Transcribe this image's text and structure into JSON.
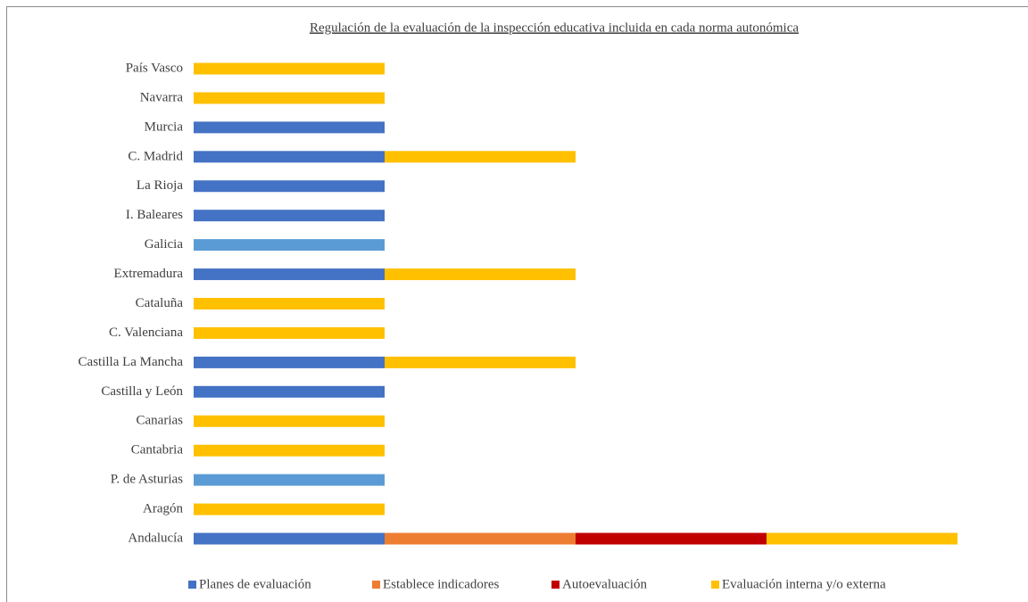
{
  "chart_data": {
    "type": "stacked_barh",
    "title": "Regulación de la evaluación de la inspección educativa incluida en cada norma autonómica",
    "categories": [
      "Andalucía",
      "Aragón",
      "P. de Asturias",
      "Cantabria",
      "Canarias",
      "Castilla y León",
      "Castilla La Mancha",
      "C. Valenciana",
      "Cataluña",
      "Extremadura",
      "Galicia",
      "I. Baleares",
      "La Rioja",
      "C. Madrid",
      "Murcia",
      "Navarra",
      "País Vasco"
    ],
    "series": [
      {
        "name": "Planes de evaluación",
        "color": "#4472c4",
        "values": [
          1,
          0,
          1,
          0,
          0,
          1,
          1,
          0,
          0,
          1,
          1,
          1,
          1,
          1,
          1,
          0,
          0
        ],
        "point_colors": [
          "#4472c4",
          "#4472c4",
          "#5b9bd5",
          "#4472c4",
          "#4472c4",
          "#4472c4",
          "#4472c4",
          "#4472c4",
          "#4472c4",
          "#4472c4",
          "#5b9bd5",
          "#4472c4",
          "#4472c4",
          "#4472c4",
          "#4472c4",
          "#4472c4",
          "#4472c4"
        ]
      },
      {
        "name": "Establece indicadores",
        "color": "#ed7d31",
        "values": [
          1,
          0,
          0,
          0,
          0,
          0,
          0,
          0,
          0,
          0,
          0,
          0,
          0,
          0,
          0,
          0,
          0
        ]
      },
      {
        "name": "Autoevaluación",
        "color": "#c00000",
        "values": [
          1,
          0,
          0,
          0,
          0,
          0,
          0,
          0,
          0,
          0,
          0,
          0,
          0,
          0,
          0,
          0,
          0
        ]
      },
      {
        "name": "Evaluación interna y/o externa",
        "color": "#ffc000",
        "values": [
          1,
          1,
          0,
          1,
          1,
          0,
          1,
          1,
          1,
          1,
          0,
          0,
          0,
          1,
          0,
          1,
          1
        ]
      }
    ],
    "legend": "bottom"
  }
}
